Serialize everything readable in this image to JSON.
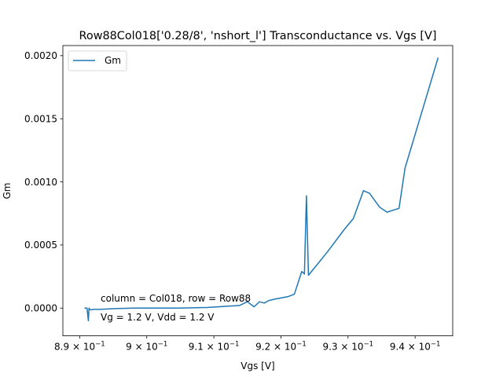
{
  "chart_data": {
    "type": "line",
    "title": "Row88Col018['0.28/8', 'nshort_l'] Transconductance vs. Vgs [V]",
    "xlabel": "Vgs [V]",
    "ylabel": "Gm",
    "xlim": [
      0.8875,
      0.9456
    ],
    "ylim": [
      -0.00022,
      0.00208
    ],
    "x_ticks": [
      {
        "value": 0.89,
        "label": "8.9 × 10",
        "exp": "−1"
      },
      {
        "value": 0.9,
        "label": "9 × 10",
        "exp": "−1"
      },
      {
        "value": 0.91,
        "label": "9.1 × 10",
        "exp": "−1"
      },
      {
        "value": 0.92,
        "label": "9.2 × 10",
        "exp": "−1"
      },
      {
        "value": 0.93,
        "label": "9.3 × 10",
        "exp": "−1"
      },
      {
        "value": 0.94,
        "label": "9.4 × 10",
        "exp": "−1"
      }
    ],
    "y_ticks": [
      {
        "value": 0.0,
        "label": "0.0000"
      },
      {
        "value": 0.0005,
        "label": "0.0005"
      },
      {
        "value": 0.001,
        "label": "0.0010"
      },
      {
        "value": 0.0015,
        "label": "0.0015"
      },
      {
        "value": 0.002,
        "label": "0.0020"
      }
    ],
    "legend": {
      "position": "top-left",
      "entries": [
        "Gm"
      ]
    },
    "annotations": [
      "column = Col018, row = Row88",
      "Vg = 1.2 V, Vdd = 1.2 V"
    ],
    "grid": false,
    "color": "#1f77b4",
    "series": [
      {
        "name": "Gm",
        "x": [
          0.8908,
          0.8911,
          0.8913,
          0.8914,
          0.8915,
          0.8917,
          0.892,
          0.893,
          0.895,
          0.898,
          0.901,
          0.905,
          0.909,
          0.912,
          0.9138,
          0.915,
          0.916,
          0.9168,
          0.9175,
          0.9182,
          0.919,
          0.92,
          0.921,
          0.922,
          0.9231,
          0.9235,
          0.9238,
          0.9241,
          0.927,
          0.9294,
          0.9308,
          0.9323,
          0.9332,
          0.9347,
          0.9358,
          0.9376,
          0.9385,
          0.9434
        ],
        "y": [
          0.0,
          0.0,
          -0.0001,
          0.0,
          -1e-05,
          -1.5e-05,
          -1e-05,
          -1e-05,
          -5e-06,
          0.0,
          0.0,
          0.0,
          5e-06,
          1.5e-05,
          2e-05,
          5e-05,
          1e-05,
          5e-05,
          4e-05,
          6e-05,
          7e-05,
          8e-05,
          9e-05,
          0.00011,
          0.00029,
          0.00027,
          0.00089,
          0.00026,
          0.00045,
          0.00062,
          0.00071,
          0.00093,
          0.00091,
          0.0008,
          0.00076,
          0.00079,
          0.00111,
          0.00198
        ]
      }
    ]
  }
}
